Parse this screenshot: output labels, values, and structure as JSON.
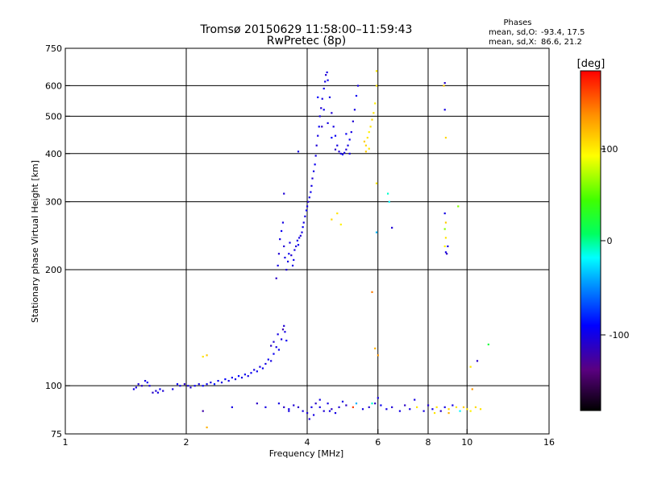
{
  "title": {
    "line1": "Tromsø 20150629 11:58:00–11:59:43",
    "line2": "RwPretec (8p)"
  },
  "phases_box": {
    "heading": "Phases",
    "o_label": "mean, sd,O:",
    "o_values": "-93.4, 17.5",
    "x_label": "mean, sd,X:",
    "x_values": "86.6, 21.2"
  },
  "colorbar": {
    "title": "[deg]",
    "tick_labels": [
      "100",
      "0",
      "-100"
    ],
    "range": [
      -180,
      180
    ]
  },
  "chart_data": {
    "type": "scatter",
    "xlabel": "Frequency [MHz]",
    "ylabel": "Stationary phase Virtual Height [km]",
    "x_scale": "log2",
    "y_scale": "log",
    "xlim": [
      1,
      16
    ],
    "ylim": [
      75,
      750
    ],
    "x_tick_labels": [
      "1",
      "2",
      "4",
      "6",
      "8",
      "10",
      "16"
    ],
    "x_gridlines": [
      2,
      4,
      6,
      8,
      10
    ],
    "y_tick_labels": [
      "75",
      "100",
      "200",
      "300",
      "400",
      "500",
      "600",
      "750"
    ],
    "y_gridlines": [
      100,
      200,
      300,
      400,
      500,
      600
    ],
    "grid": true,
    "color_encoding": "phase_deg",
    "points": [
      [
        1.48,
        98,
        -100
      ],
      [
        1.5,
        99,
        -100
      ],
      [
        1.52,
        101,
        -105
      ],
      [
        1.55,
        100,
        -110
      ],
      [
        1.58,
        103,
        -100
      ],
      [
        1.6,
        102,
        -95
      ],
      [
        1.62,
        100,
        -100
      ],
      [
        1.65,
        96,
        -110
      ],
      [
        1.68,
        97,
        -105
      ],
      [
        1.7,
        96,
        -100
      ],
      [
        1.72,
        98,
        -95
      ],
      [
        1.75,
        97,
        -105
      ],
      [
        1.85,
        98,
        -100
      ],
      [
        1.9,
        101,
        -95
      ],
      [
        1.93,
        100,
        -100
      ],
      [
        1.98,
        101,
        -110
      ],
      [
        2.02,
        100,
        -100
      ],
      [
        2.05,
        99,
        -105
      ],
      [
        2.1,
        100,
        -95
      ],
      [
        2.15,
        101,
        -100
      ],
      [
        2.2,
        100,
        -90
      ],
      [
        2.25,
        101,
        -95
      ],
      [
        2.3,
        102,
        -100
      ],
      [
        2.35,
        101,
        -85
      ],
      [
        2.4,
        103,
        -95
      ],
      [
        2.45,
        102,
        -100
      ],
      [
        2.5,
        104,
        -90
      ],
      [
        2.55,
        103,
        -100
      ],
      [
        2.6,
        105,
        -95
      ],
      [
        2.65,
        104,
        -100
      ],
      [
        2.7,
        106,
        -90
      ],
      [
        2.75,
        105,
        -100
      ],
      [
        2.8,
        107,
        -95
      ],
      [
        2.85,
        106,
        -100
      ],
      [
        2.9,
        108,
        -95
      ],
      [
        2.95,
        110,
        -100
      ],
      [
        3.0,
        109,
        -95
      ],
      [
        3.05,
        112,
        -100
      ],
      [
        3.1,
        111,
        -95
      ],
      [
        3.15,
        114,
        -100
      ],
      [
        3.2,
        117,
        -95
      ],
      [
        3.25,
        116,
        -100
      ],
      [
        3.3,
        121,
        -95
      ],
      [
        3.35,
        126,
        -100
      ],
      [
        3.4,
        124,
        -95
      ],
      [
        3.45,
        132,
        -100
      ],
      [
        3.5,
        143,
        -105
      ],
      [
        3.52,
        138,
        -100
      ],
      [
        3.55,
        131,
        -95
      ],
      [
        3.3,
        130,
        -105
      ],
      [
        3.25,
        127,
        -110
      ],
      [
        3.38,
        136,
        -100
      ],
      [
        3.48,
        140,
        -120
      ],
      [
        2.2,
        119,
        100
      ],
      [
        2.25,
        120,
        110
      ],
      [
        3.35,
        190,
        -110
      ],
      [
        3.38,
        205,
        -100
      ],
      [
        3.4,
        220,
        -105
      ],
      [
        3.42,
        240,
        -100
      ],
      [
        3.45,
        252,
        -95
      ],
      [
        3.48,
        265,
        -100
      ],
      [
        3.5,
        230,
        -105
      ],
      [
        3.52,
        215,
        -100
      ],
      [
        3.55,
        200,
        -105
      ],
      [
        3.58,
        210,
        -100
      ],
      [
        3.6,
        220,
        -95
      ],
      [
        3.62,
        235,
        -100
      ],
      [
        3.65,
        218,
        -105
      ],
      [
        3.68,
        205,
        -100
      ],
      [
        3.7,
        212,
        -95
      ],
      [
        3.72,
        225,
        -100
      ],
      [
        3.75,
        230,
        -105
      ],
      [
        3.78,
        238,
        -100
      ],
      [
        3.8,
        232,
        -95
      ],
      [
        3.82,
        242,
        -100
      ],
      [
        3.85,
        245,
        -105
      ],
      [
        3.88,
        250,
        -100
      ],
      [
        3.9,
        258,
        -95
      ],
      [
        3.92,
        265,
        -100
      ],
      [
        3.95,
        275,
        -100
      ],
      [
        3.98,
        285,
        -95
      ],
      [
        4.0,
        292,
        -100
      ],
      [
        4.02,
        300,
        -105
      ],
      [
        4.05,
        308,
        -100
      ],
      [
        4.08,
        318,
        -95
      ],
      [
        4.1,
        330,
        -100
      ],
      [
        4.12,
        345,
        -105
      ],
      [
        4.15,
        360,
        -100
      ],
      [
        4.18,
        375,
        -95
      ],
      [
        4.2,
        395,
        -100
      ],
      [
        4.22,
        420,
        -105
      ],
      [
        4.25,
        445,
        -100
      ],
      [
        4.28,
        470,
        -95
      ],
      [
        4.3,
        500,
        -100
      ],
      [
        4.33,
        525,
        -105
      ],
      [
        4.36,
        555,
        -100
      ],
      [
        4.4,
        590,
        -95
      ],
      [
        4.43,
        615,
        -100
      ],
      [
        4.45,
        640,
        -105
      ],
      [
        4.48,
        650,
        -100
      ],
      [
        4.5,
        620,
        -95
      ],
      [
        4.55,
        560,
        -100
      ],
      [
        4.6,
        510,
        -105
      ],
      [
        4.65,
        470,
        -100
      ],
      [
        4.7,
        445,
        -95
      ],
      [
        4.75,
        420,
        -100
      ],
      [
        4.8,
        405,
        -105
      ],
      [
        4.85,
        400,
        -100
      ],
      [
        4.9,
        398,
        -95
      ],
      [
        4.95,
        402,
        -100
      ],
      [
        5.0,
        410,
        -105
      ],
      [
        5.05,
        420,
        -100
      ],
      [
        5.1,
        435,
        -95
      ],
      [
        5.15,
        455,
        -100
      ],
      [
        5.2,
        485,
        -105
      ],
      [
        5.25,
        520,
        -100
      ],
      [
        5.3,
        565,
        -95
      ],
      [
        5.35,
        600,
        -100
      ],
      [
        4.35,
        470,
        -110
      ],
      [
        4.4,
        520,
        -95
      ],
      [
        4.5,
        480,
        -100
      ],
      [
        4.6,
        440,
        -90
      ],
      [
        4.7,
        410,
        -110
      ],
      [
        5.0,
        450,
        -95
      ],
      [
        5.1,
        400,
        -100
      ],
      [
        3.5,
        315,
        -105
      ],
      [
        3.8,
        405,
        -100
      ],
      [
        4.25,
        560,
        -90
      ],
      [
        5.55,
        430,
        110
      ],
      [
        5.6,
        420,
        105
      ],
      [
        5.65,
        440,
        100
      ],
      [
        5.7,
        455,
        95
      ],
      [
        5.75,
        470,
        100
      ],
      [
        5.8,
        490,
        105
      ],
      [
        5.85,
        510,
        100
      ],
      [
        5.9,
        540,
        95
      ],
      [
        5.95,
        600,
        105
      ],
      [
        5.95,
        655,
        100
      ],
      [
        5.6,
        405,
        110
      ],
      [
        5.7,
        412,
        100
      ],
      [
        4.6,
        270,
        105
      ],
      [
        4.75,
        280,
        100
      ],
      [
        4.85,
        262,
        95
      ],
      [
        5.95,
        335,
        100
      ],
      [
        5.8,
        175,
        140
      ],
      [
        5.9,
        125,
        120
      ],
      [
        6.0,
        120,
        130
      ],
      [
        5.95,
        250,
        -40
      ],
      [
        6.35,
        315,
        -10
      ],
      [
        6.4,
        300,
        -20
      ],
      [
        6.5,
        257,
        -105
      ],
      [
        8.8,
        610,
        -110
      ],
      [
        8.75,
        600,
        110
      ],
      [
        8.8,
        520,
        -100
      ],
      [
        8.85,
        440,
        105
      ],
      [
        8.8,
        280,
        -100
      ],
      [
        8.85,
        265,
        110
      ],
      [
        8.8,
        255,
        60
      ],
      [
        8.85,
        242,
        100
      ],
      [
        8.8,
        230,
        95
      ],
      [
        8.85,
        222,
        -100
      ],
      [
        8.9,
        220,
        -110
      ],
      [
        8.95,
        230,
        -100
      ],
      [
        9.5,
        292,
        60
      ],
      [
        10.2,
        112,
        100
      ],
      [
        10.6,
        116,
        -110
      ],
      [
        11.3,
        128,
        20
      ],
      [
        10.3,
        98,
        130
      ],
      [
        3.4,
        90,
        -100
      ],
      [
        3.5,
        88,
        -110
      ],
      [
        3.6,
        87,
        -100
      ],
      [
        3.7,
        89,
        -105
      ],
      [
        3.8,
        88,
        -110
      ],
      [
        3.9,
        86,
        -100
      ],
      [
        4.0,
        85,
        -105
      ],
      [
        4.1,
        88,
        -100
      ],
      [
        4.2,
        90,
        -110
      ],
      [
        4.3,
        88,
        -100
      ],
      [
        4.4,
        86,
        -105
      ],
      [
        4.5,
        90,
        -100
      ],
      [
        4.6,
        87,
        -110
      ],
      [
        4.7,
        85,
        -100
      ],
      [
        4.8,
        88,
        -105
      ],
      [
        4.9,
        91,
        -100
      ],
      [
        5.0,
        89,
        -110
      ],
      [
        5.2,
        88,
        160
      ],
      [
        5.3,
        90,
        -40
      ],
      [
        5.5,
        87,
        -100
      ],
      [
        5.7,
        88,
        -105
      ],
      [
        5.9,
        90,
        -110
      ],
      [
        6.0,
        93,
        -100
      ],
      [
        6.1,
        89,
        -95
      ],
      [
        6.3,
        87,
        -100
      ],
      [
        6.5,
        88,
        -105
      ],
      [
        6.8,
        86,
        -100
      ],
      [
        7.0,
        89,
        -110
      ],
      [
        7.2,
        87,
        -100
      ],
      [
        7.5,
        88,
        100
      ],
      [
        7.8,
        86,
        -100
      ],
      [
        8.0,
        89,
        -105
      ],
      [
        8.2,
        87,
        -100
      ],
      [
        8.4,
        88,
        100
      ],
      [
        8.6,
        86,
        -110
      ],
      [
        8.8,
        88,
        -100
      ],
      [
        9.0,
        87,
        105
      ],
      [
        9.2,
        89,
        -100
      ],
      [
        9.4,
        88,
        100
      ],
      [
        9.6,
        86,
        -20
      ],
      [
        9.8,
        88,
        110
      ],
      [
        10.0,
        87,
        100
      ],
      [
        10.2,
        86,
        95
      ],
      [
        10.5,
        88,
        105
      ],
      [
        10.8,
        87,
        100
      ],
      [
        3.6,
        86,
        -100
      ],
      [
        4.05,
        82,
        -105
      ],
      [
        4.15,
        84,
        -100
      ],
      [
        4.55,
        86,
        -100
      ],
      [
        5.8,
        90,
        -10
      ],
      [
        7.4,
        92,
        -100
      ],
      [
        8.3,
        85,
        100
      ],
      [
        9.0,
        85,
        120
      ],
      [
        4.3,
        92,
        -100
      ],
      [
        3.0,
        90,
        -110
      ],
      [
        3.15,
        88,
        -100
      ],
      [
        2.2,
        86,
        -120
      ],
      [
        2.6,
        88,
        -100
      ],
      [
        2.25,
        78,
        120
      ]
    ]
  }
}
